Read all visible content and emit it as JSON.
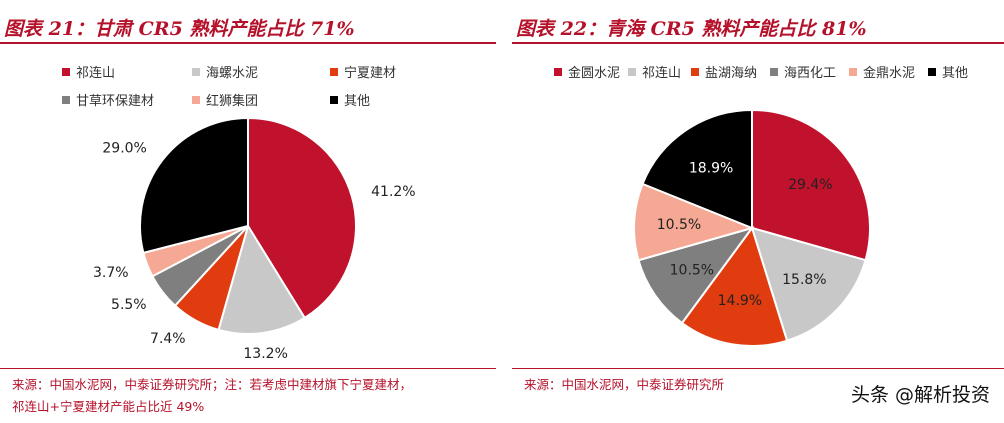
{
  "left": {
    "title": "图表 21：甘肃 CR5 熟料产能占比 71%",
    "note_line1": "来源：中国水泥网，中泰证券研究所；注：若考虑中建材旗下宁夏建材，",
    "note_line2": "祁连山+宁夏建材产能占比近 49%",
    "chart_data": {
      "type": "pie",
      "categories": [
        "祁连山",
        "海螺水泥",
        "宁夏建材",
        "甘草环保建材",
        "红狮集团",
        "其他"
      ],
      "values": [
        41.2,
        13.2,
        7.4,
        5.5,
        3.7,
        29.0
      ],
      "labels": [
        "41.2%",
        "13.2%",
        "7.4%",
        "5.5%",
        "3.7%",
        "29.0%"
      ],
      "colors": [
        "#c0122c",
        "#c8c8c8",
        "#e03c10",
        "#7f7f7f",
        "#f5a995",
        "#000000"
      ],
      "legend_position": "top"
    }
  },
  "right": {
    "title": "图表 22：青海 CR5 熟料产能占比 81%",
    "note_line1": "来源：中国水泥网，中泰证券研究所",
    "chart_data": {
      "type": "pie",
      "categories": [
        "金圆水泥",
        "祁连山",
        "盐湖海纳",
        "海西化工",
        "金鼎水泥",
        "其他"
      ],
      "values": [
        29.4,
        15.8,
        14.9,
        10.5,
        10.5,
        18.9
      ],
      "labels": [
        "29.4%",
        "15.8%",
        "14.9%",
        "10.5%",
        "10.5%",
        "18.9%"
      ],
      "colors": [
        "#c0122c",
        "#c8c8c8",
        "#e03c10",
        "#7f7f7f",
        "#f5a995",
        "#000000"
      ],
      "legend_position": "top"
    }
  },
  "watermark": "头条 @解析投资"
}
